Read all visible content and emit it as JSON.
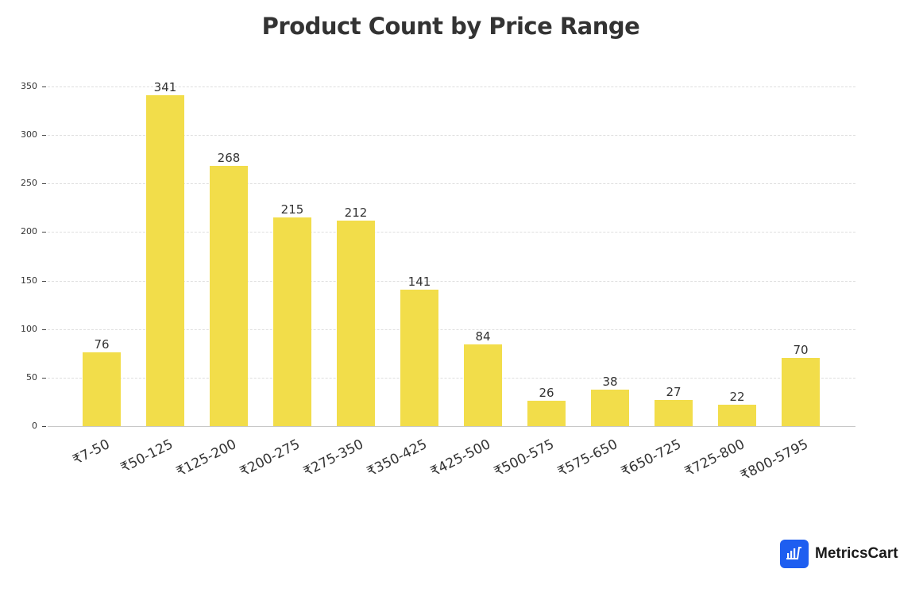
{
  "title": "Product Count by Price Range",
  "brand": {
    "name": "MetricsCart",
    "icon": "bar-chart-cart-icon",
    "color": "#1e5ef0"
  },
  "chart_data": {
    "type": "bar",
    "title": "Product Count by Price Range",
    "xlabel": "",
    "ylabel": "",
    "categories": [
      "₹7-50",
      "₹50-125",
      "₹125-200",
      "₹200-275",
      "₹275-350",
      "₹350-425",
      "₹425-500",
      "₹500-575",
      "₹575-650",
      "₹650-725",
      "₹725-800",
      "₹800-5795"
    ],
    "values": [
      76,
      341,
      268,
      215,
      212,
      141,
      84,
      26,
      38,
      27,
      22,
      70
    ],
    "ylim": [
      0,
      350
    ],
    "yticks": [
      0,
      50,
      100,
      150,
      200,
      250,
      300,
      350
    ],
    "grid": true,
    "bar_color": "#f2dd4a",
    "data_labels": true,
    "legend": null
  }
}
